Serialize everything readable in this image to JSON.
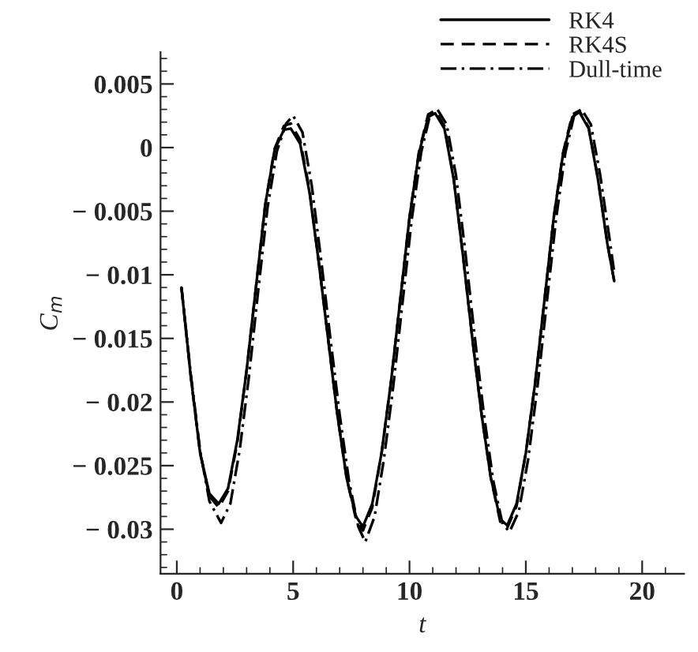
{
  "chart_data": {
    "type": "line",
    "xlabel": "t",
    "ylabel": "C$_{m}$",
    "xlim": [
      -0.7,
      21.8
    ],
    "ylim": [
      -0.0335,
      0.0075
    ],
    "xticks": [
      0,
      5,
      10,
      15,
      20
    ],
    "yticks": [
      {
        "value": 0.005,
        "label": "0.005"
      },
      0,
      {
        "value": -0.005,
        "label": "− 0.005"
      },
      {
        "value": -0.01,
        "label": "− 0.01"
      },
      {
        "value": -0.015,
        "label": "− 0.015"
      },
      {
        "value": -0.02,
        "label": "− 0.02"
      },
      {
        "value": -0.025,
        "label": "− 0.025"
      },
      {
        "value": -0.03,
        "label": "− 0.03"
      }
    ],
    "grid": false,
    "legend": "top right",
    "series": [
      {
        "name": "RK4",
        "color": "#000000",
        "line_style": "solid",
        "x": [
          0.2,
          0.6,
          1.0,
          1.4,
          1.8,
          2.2,
          2.6,
          3.0,
          3.4,
          3.8,
          4.2,
          4.6,
          4.9,
          5.3,
          5.7,
          6.1,
          6.5,
          6.9,
          7.3,
          7.7,
          8.0,
          8.4,
          8.8,
          9.2,
          9.6,
          10.0,
          10.4,
          10.8,
          11.1,
          11.5,
          11.9,
          12.3,
          12.7,
          13.1,
          13.5,
          13.9,
          14.2,
          14.6,
          15.0,
          15.4,
          15.8,
          16.2,
          16.6,
          17.0,
          17.3,
          17.7,
          18.1,
          18.5,
          18.8
        ],
        "values": [
          -0.011,
          -0.018,
          -0.024,
          -0.0272,
          -0.028,
          -0.0268,
          -0.023,
          -0.0175,
          -0.011,
          -0.0045,
          -0.0002,
          0.0014,
          0.0015,
          0.0003,
          -0.0035,
          -0.009,
          -0.015,
          -0.021,
          -0.026,
          -0.029,
          -0.0298,
          -0.028,
          -0.024,
          -0.0185,
          -0.012,
          -0.0055,
          -0.0005,
          0.0024,
          0.0027,
          0.0015,
          -0.0025,
          -0.0085,
          -0.015,
          -0.021,
          -0.026,
          -0.0292,
          -0.0297,
          -0.028,
          -0.024,
          -0.0185,
          -0.012,
          -0.0055,
          -0.0005,
          0.0024,
          0.0028,
          0.0015,
          -0.0025,
          -0.0075,
          -0.0105
        ]
      },
      {
        "name": "RK4S",
        "color": "#000000",
        "line_style": "dashed",
        "x": [
          0.2,
          0.6,
          1.0,
          1.4,
          1.8,
          2.2,
          2.6,
          3.0,
          3.4,
          3.8,
          4.2,
          4.6,
          4.9,
          5.3,
          5.7,
          6.1,
          6.5,
          6.9,
          7.3,
          7.7,
          8.0,
          8.4,
          8.8,
          9.2,
          9.6,
          10.0,
          10.4,
          10.8,
          11.1,
          11.5,
          11.9,
          12.3,
          12.7,
          13.1,
          13.5,
          13.9,
          14.2,
          14.6,
          15.0,
          15.4,
          15.8,
          16.2,
          16.6,
          17.0,
          17.3,
          17.7,
          18.1,
          18.5,
          18.8
        ],
        "values": [
          -0.011,
          -0.018,
          -0.024,
          -0.0274,
          -0.0283,
          -0.027,
          -0.0232,
          -0.0175,
          -0.011,
          -0.0045,
          -0.0001,
          0.0017,
          0.0019,
          0.0006,
          -0.0033,
          -0.009,
          -0.015,
          -0.021,
          -0.026,
          -0.0292,
          -0.0301,
          -0.0283,
          -0.024,
          -0.0185,
          -0.012,
          -0.0055,
          -0.0004,
          0.0026,
          0.0029,
          0.0017,
          -0.0024,
          -0.0085,
          -0.015,
          -0.021,
          -0.026,
          -0.0294,
          -0.0299,
          -0.0282,
          -0.024,
          -0.0185,
          -0.012,
          -0.0055,
          -0.0004,
          0.0026,
          0.0029,
          0.0016,
          -0.0024,
          -0.0075,
          -0.0105
        ]
      },
      {
        "name": "Dull-time",
        "color": "#000000",
        "line_style": "dashdot",
        "x": [
          0.2,
          0.6,
          1.0,
          1.4,
          1.9,
          2.3,
          2.7,
          3.1,
          3.5,
          3.9,
          4.3,
          4.7,
          5.0,
          5.4,
          5.8,
          6.2,
          6.6,
          7.0,
          7.4,
          7.8,
          8.1,
          8.5,
          8.9,
          9.3,
          9.7,
          10.1,
          10.5,
          10.9,
          11.2,
          11.6,
          12.0,
          12.4,
          12.8,
          13.2,
          13.6,
          14.0,
          14.3,
          14.7,
          15.1,
          15.5,
          15.9,
          16.3,
          16.7,
          17.1,
          17.4,
          17.8,
          18.2,
          18.6,
          18.8
        ],
        "values": [
          -0.011,
          -0.0178,
          -0.0238,
          -0.0278,
          -0.0295,
          -0.028,
          -0.0238,
          -0.018,
          -0.0112,
          -0.0047,
          -0.0003,
          0.0019,
          0.0025,
          0.0012,
          -0.003,
          -0.0088,
          -0.015,
          -0.021,
          -0.0262,
          -0.0298,
          -0.031,
          -0.029,
          -0.0245,
          -0.0188,
          -0.0122,
          -0.0056,
          -0.0004,
          0.0027,
          0.003,
          0.0018,
          -0.0022,
          -0.0082,
          -0.0148,
          -0.021,
          -0.0262,
          -0.0296,
          -0.0302,
          -0.0286,
          -0.0245,
          -0.0188,
          -0.0122,
          -0.0056,
          -0.0004,
          0.0027,
          0.003,
          0.0018,
          -0.0022,
          -0.0072,
          -0.0098
        ]
      }
    ]
  }
}
